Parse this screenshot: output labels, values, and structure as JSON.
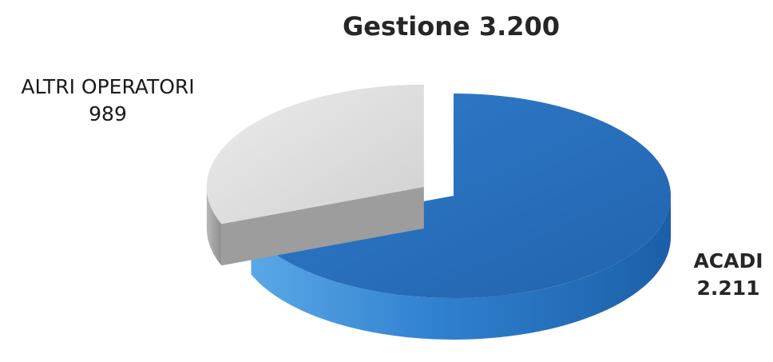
{
  "chart_data": {
    "type": "pie",
    "title": "Gestione 3.200",
    "slices": [
      {
        "label": "ACADI",
        "value": 2211,
        "value_label": "2.211",
        "color": "#2a6fbe"
      },
      {
        "label": "ALTRI OPERATORI",
        "value": 989,
        "value_label": "989",
        "color": "#d6d6d6"
      }
    ],
    "total": 3200,
    "style": "3d-exploded",
    "legend": "none"
  }
}
